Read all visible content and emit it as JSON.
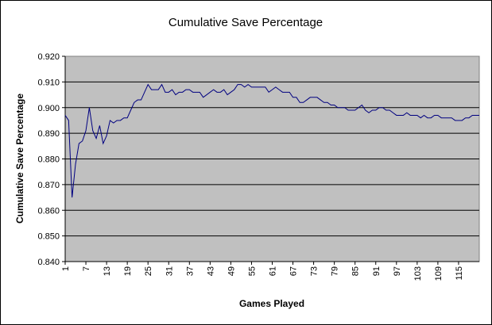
{
  "chart_data": {
    "type": "line",
    "title": "Cumulative Save Percentage",
    "xlabel": "Games Played",
    "ylabel": "Cumulative Save Percentage",
    "ylim": [
      0.84,
      0.92
    ],
    "yticks": [
      "0.840",
      "0.850",
      "0.860",
      "0.870",
      "0.880",
      "0.890",
      "0.900",
      "0.910",
      "0.920"
    ],
    "xticks": [
      "1",
      "7",
      "13",
      "19",
      "25",
      "31",
      "37",
      "43",
      "49",
      "55",
      "61",
      "67",
      "73",
      "79",
      "85",
      "91",
      "97",
      "103",
      "109",
      "115"
    ],
    "xlim": [
      1,
      121
    ],
    "grid": true,
    "legend": "none",
    "colors": {
      "line": "#000080",
      "plot_bg": "#c0c0c0",
      "grid": "#000000"
    },
    "series": [
      {
        "values": [
          0.897,
          0.895,
          0.865,
          0.878,
          0.886,
          0.887,
          0.891,
          0.9,
          0.891,
          0.888,
          0.893,
          0.886,
          0.889,
          0.895,
          0.894,
          0.895,
          0.895,
          0.896,
          0.896,
          0.899,
          0.902,
          0.903,
          0.903,
          0.906,
          0.909,
          0.907,
          0.907,
          0.907,
          0.909,
          0.906,
          0.906,
          0.907,
          0.905,
          0.906,
          0.906,
          0.907,
          0.907,
          0.906,
          0.906,
          0.906,
          0.904,
          0.905,
          0.906,
          0.907,
          0.906,
          0.906,
          0.907,
          0.905,
          0.906,
          0.907,
          0.909,
          0.909,
          0.908,
          0.909,
          0.908,
          0.908,
          0.908,
          0.908,
          0.908,
          0.906,
          0.907,
          0.908,
          0.907,
          0.906,
          0.906,
          0.906,
          0.904,
          0.904,
          0.902,
          0.902,
          0.903,
          0.904,
          0.904,
          0.904,
          0.903,
          0.902,
          0.902,
          0.901,
          0.901,
          0.9,
          0.9,
          0.9,
          0.899,
          0.899,
          0.899,
          0.9,
          0.901,
          0.899,
          0.898,
          0.899,
          0.899,
          0.9,
          0.9,
          0.899,
          0.899,
          0.898,
          0.897,
          0.897,
          0.897,
          0.898,
          0.897,
          0.897,
          0.897,
          0.896,
          0.897,
          0.896,
          0.896,
          0.897,
          0.897,
          0.896,
          0.896,
          0.896,
          0.896,
          0.895,
          0.895,
          0.895,
          0.896,
          0.896,
          0.897,
          0.897,
          0.897
        ]
      }
    ]
  }
}
